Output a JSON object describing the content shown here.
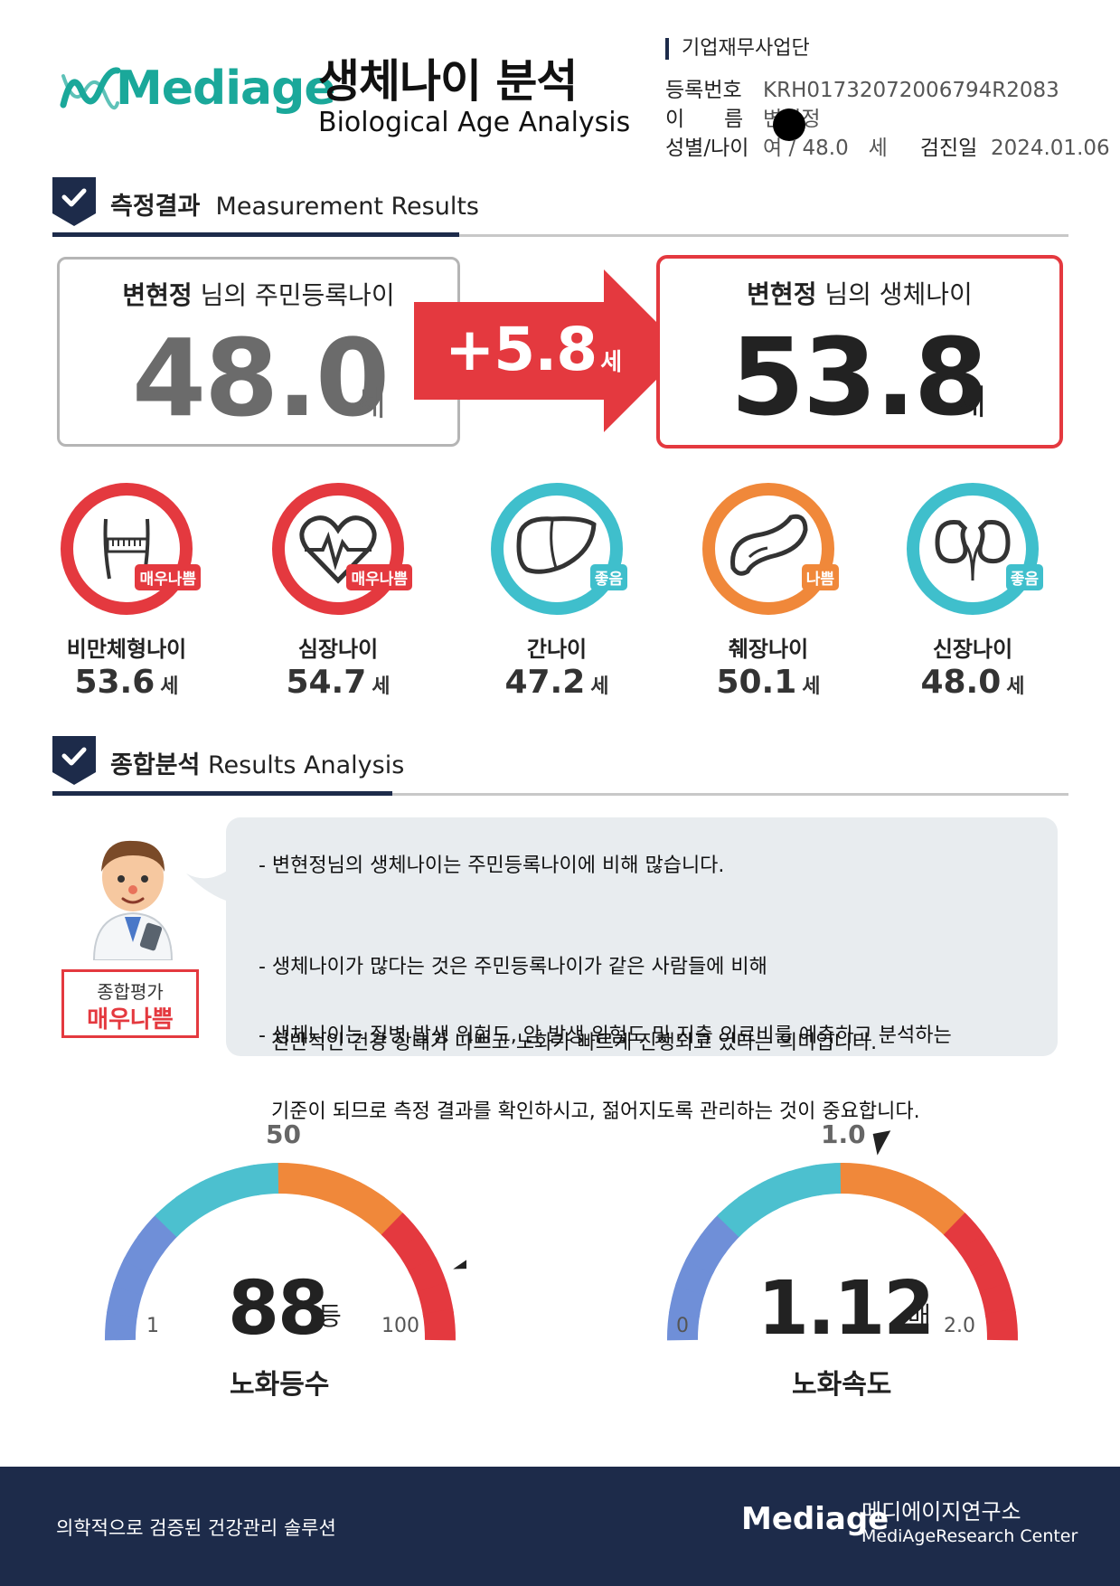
{
  "brand": {
    "logo": "Mediage",
    "logo_symbol": "dna-wave-logo"
  },
  "header": {
    "title_ko": "생체나이 분석",
    "title_en": "Biological Age Analysis",
    "org": "기업재무사업단",
    "reg_label": "등록번호",
    "reg_value": "KRH01732072006794R2083",
    "name_label": "이      름",
    "name_value": "변현정",
    "sexage_label": "성별/나이",
    "sexage_value": "여 / 48.0   세",
    "exam_label": "검진일",
    "exam_value": "2024.01.06"
  },
  "sections": {
    "measure_ko": "측정결과",
    "measure_en": "Measurement Results",
    "analysis_ko": "종합분석",
    "analysis_en": "Results Analysis"
  },
  "ages": {
    "name": "변현정",
    "chrono_caption": "님의 주민등록나이",
    "chrono_value": "48.0",
    "bio_caption": "님의 생체나이",
    "bio_value": "53.8",
    "diff": "+5.8",
    "unit": "세"
  },
  "organs": [
    {
      "name": "비만체형나이",
      "value": "53.6",
      "unit": "세",
      "status": "매우나쁨",
      "color": "#e4393f",
      "icon": "waist-measure-icon"
    },
    {
      "name": "심장나이",
      "value": "54.7",
      "unit": "세",
      "status": "매우나쁨",
      "color": "#e4393f",
      "icon": "heart-icon"
    },
    {
      "name": "간나이",
      "value": "47.2",
      "unit": "세",
      "status": "좋음",
      "color": "#3fbfcc",
      "icon": "liver-icon"
    },
    {
      "name": "췌장나이",
      "value": "50.1",
      "unit": "세",
      "status": "나쁨",
      "color": "#f0883a",
      "icon": "pancreas-icon"
    },
    {
      "name": "신장나이",
      "value": "48.0",
      "unit": "세",
      "status": "좋음",
      "color": "#3fbfcc",
      "icon": "kidney-icon"
    }
  ],
  "analysis": {
    "bullets": [
      [
        "- 변현정님의 생체나이는 주민등록나이에 비해 많습니다."
      ],
      [
        "- 생체나이가 많다는 것은 주민등록나이가 같은 사람들에 비해",
        "  전반적인 건강 상태가 나쁘고 노화가 빠르게 진행되고 있다는 의미입니다."
      ],
      [
        "- 생체나이는 질병 발생 위험도, 암 발생 위험도 및 지출 의료비를 예측하고 분석하는",
        "  기준이 되므로 측정 결과를 확인하시고, 젊어지도록 관리하는 것이 중요합니다."
      ]
    ],
    "eval_label": "종합평가",
    "eval_value": "매우나쁨"
  },
  "gauges": [
    {
      "caption": "노화등수",
      "value": "88",
      "unit": "등",
      "min": "1",
      "max": "100",
      "mid": "50",
      "value_num": 88,
      "min_num": 1,
      "max_num": 100
    },
    {
      "caption": "노화속도",
      "value": "1.12",
      "unit": "배",
      "min": "0",
      "max": "2.0",
      "mid": "1.0",
      "value_num": 1.12,
      "min_num": 0,
      "max_num": 2.0
    }
  ],
  "gauge_colors": [
    "#6f8fd8",
    "#4cc0cf",
    "#f0883a",
    "#e4393f"
  ],
  "footer": {
    "slogan": "의학적으로 검증된 건강관리 솔루션",
    "logo": "Mediage",
    "org_ko": "메디에이지연구소",
    "org_en": "MediAgeResearch Center"
  }
}
